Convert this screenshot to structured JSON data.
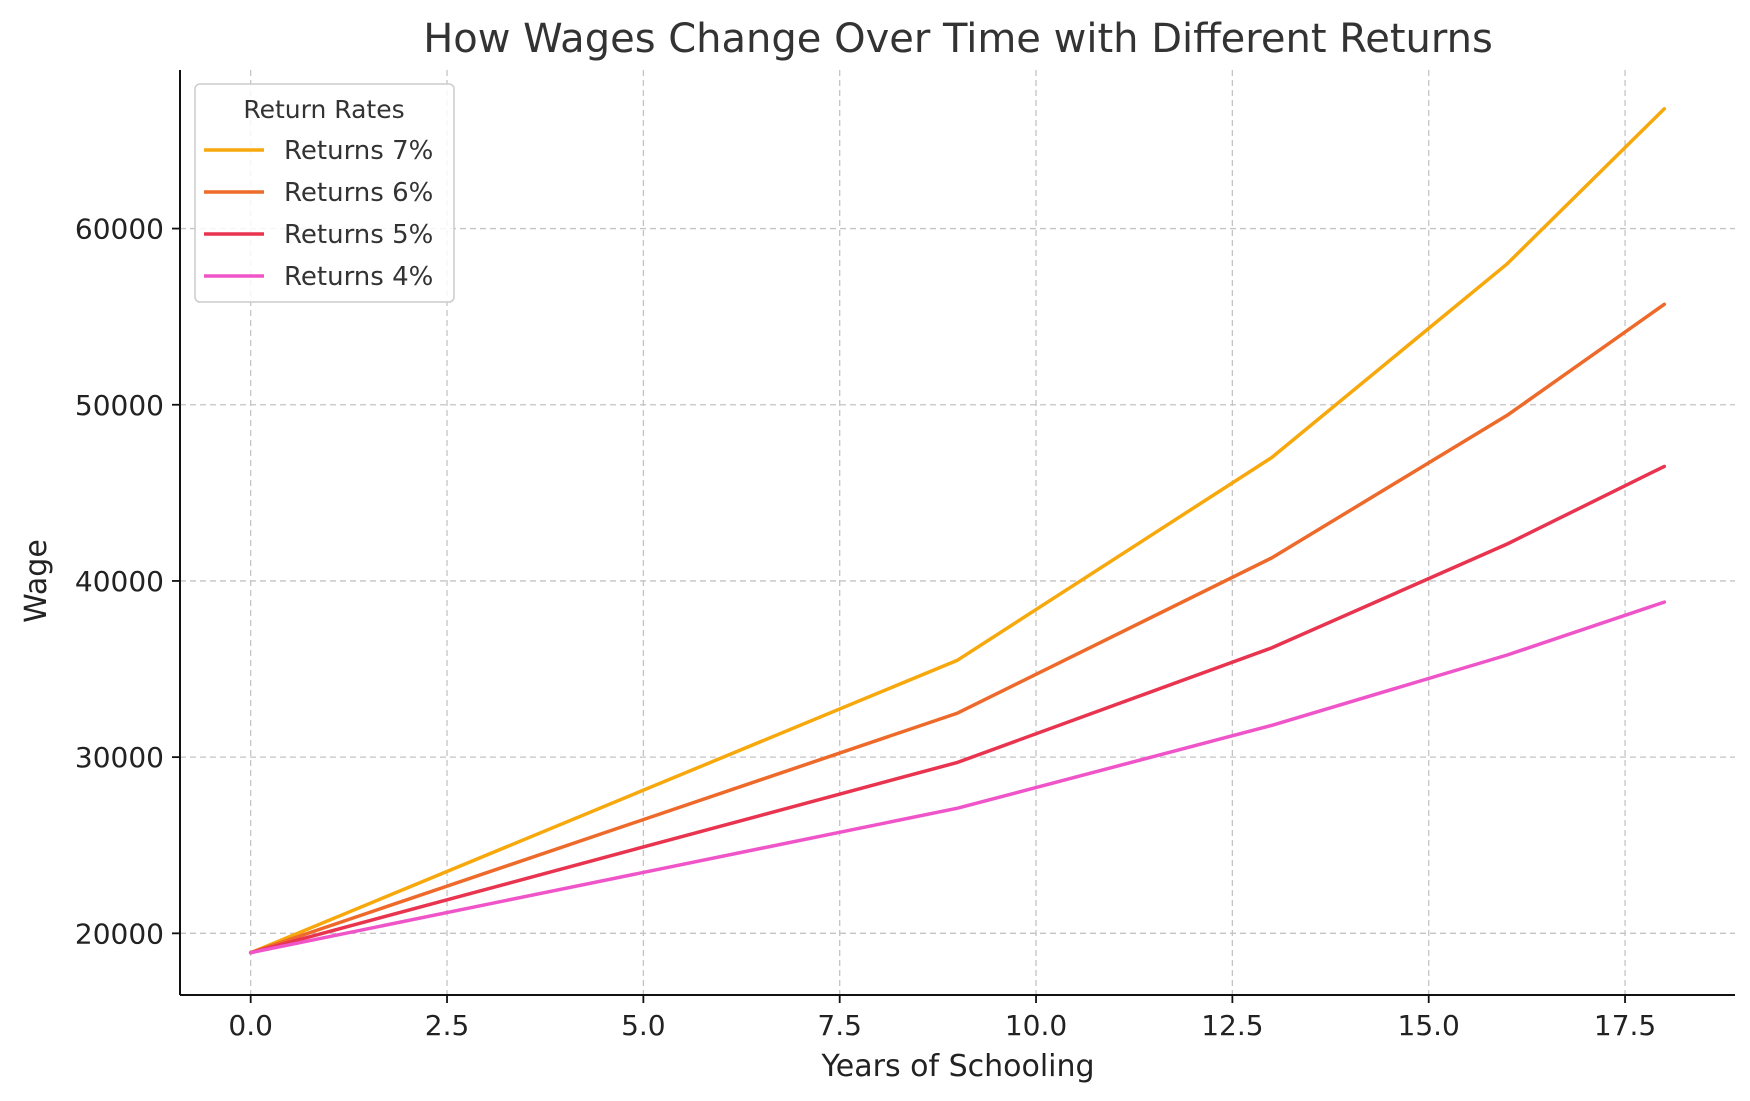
{
  "chart_data": {
    "type": "line",
    "title": "How Wages Change Over Time with Different Returns",
    "xlabel": "Years of Schooling",
    "ylabel": "Wage",
    "xlim": [
      -0.9,
      18.9
    ],
    "ylim": [
      16500,
      69000
    ],
    "xticks": [
      0.0,
      2.5,
      5.0,
      7.5,
      10.0,
      12.5,
      15.0,
      17.5
    ],
    "xtick_labels": [
      "0.0",
      "2.5",
      "5.0",
      "7.5",
      "10.0",
      "12.5",
      "15.0",
      "17.5"
    ],
    "yticks": [
      20000,
      30000,
      40000,
      50000,
      60000
    ],
    "ytick_labels": [
      "20000",
      "30000",
      "40000",
      "50000",
      "60000"
    ],
    "grid": true,
    "legend": {
      "title": "Return Rates",
      "placement": "top-left"
    },
    "x": [
      0,
      9,
      13,
      16,
      18
    ],
    "series": [
      {
        "name": "Returns 7%",
        "color": "#F7A80C",
        "values": [
          18900,
          35500,
          47000,
          58000,
          66800
        ]
      },
      {
        "name": "Returns 6%",
        "color": "#EE6A2A",
        "values": [
          18900,
          32500,
          41300,
          49400,
          55700
        ]
      },
      {
        "name": "Returns 5%",
        "color": "#E9344F",
        "values": [
          18900,
          29700,
          36200,
          42100,
          46500
        ]
      },
      {
        "name": "Returns 4%",
        "color": "#EF55C9",
        "values": [
          18900,
          27100,
          31800,
          35800,
          38800
        ]
      }
    ]
  }
}
